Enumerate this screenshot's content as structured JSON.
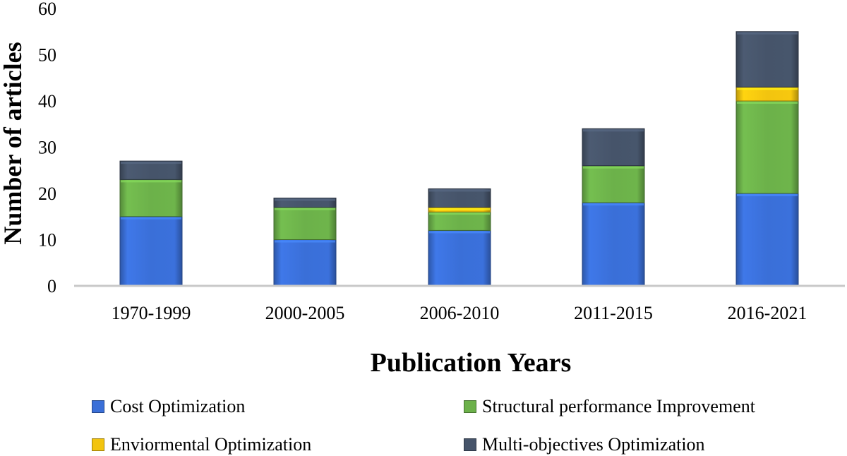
{
  "chart_data": {
    "type": "bar",
    "stacked": true,
    "categories": [
      "1970-1999",
      "2000-2005",
      "2006-2010",
      "2011-2015",
      "2016-2021"
    ],
    "series": [
      {
        "name": "Cost Optimization",
        "values": [
          15,
          10,
          12,
          18,
          20
        ],
        "color": "#3a6fd8"
      },
      {
        "name": "Structural performance Improvement",
        "values": [
          8,
          7,
          4,
          8,
          20
        ],
        "color": "#6cb14a"
      },
      {
        "name": "Enviormental Optimization",
        "values": [
          0,
          0,
          1,
          0,
          3
        ],
        "color": "#f2c40f"
      },
      {
        "name": "Multi-objectives Optimization",
        "values": [
          4,
          2,
          4,
          8,
          12
        ],
        "color": "#46546a"
      }
    ],
    "xlabel": "Publication Years",
    "ylabel": "Number of articles",
    "ylim": [
      0,
      60
    ],
    "yticks": [
      "0",
      "10",
      "20",
      "30",
      "40",
      "50",
      "60"
    ],
    "grid": false,
    "legend_position": "bottom"
  }
}
